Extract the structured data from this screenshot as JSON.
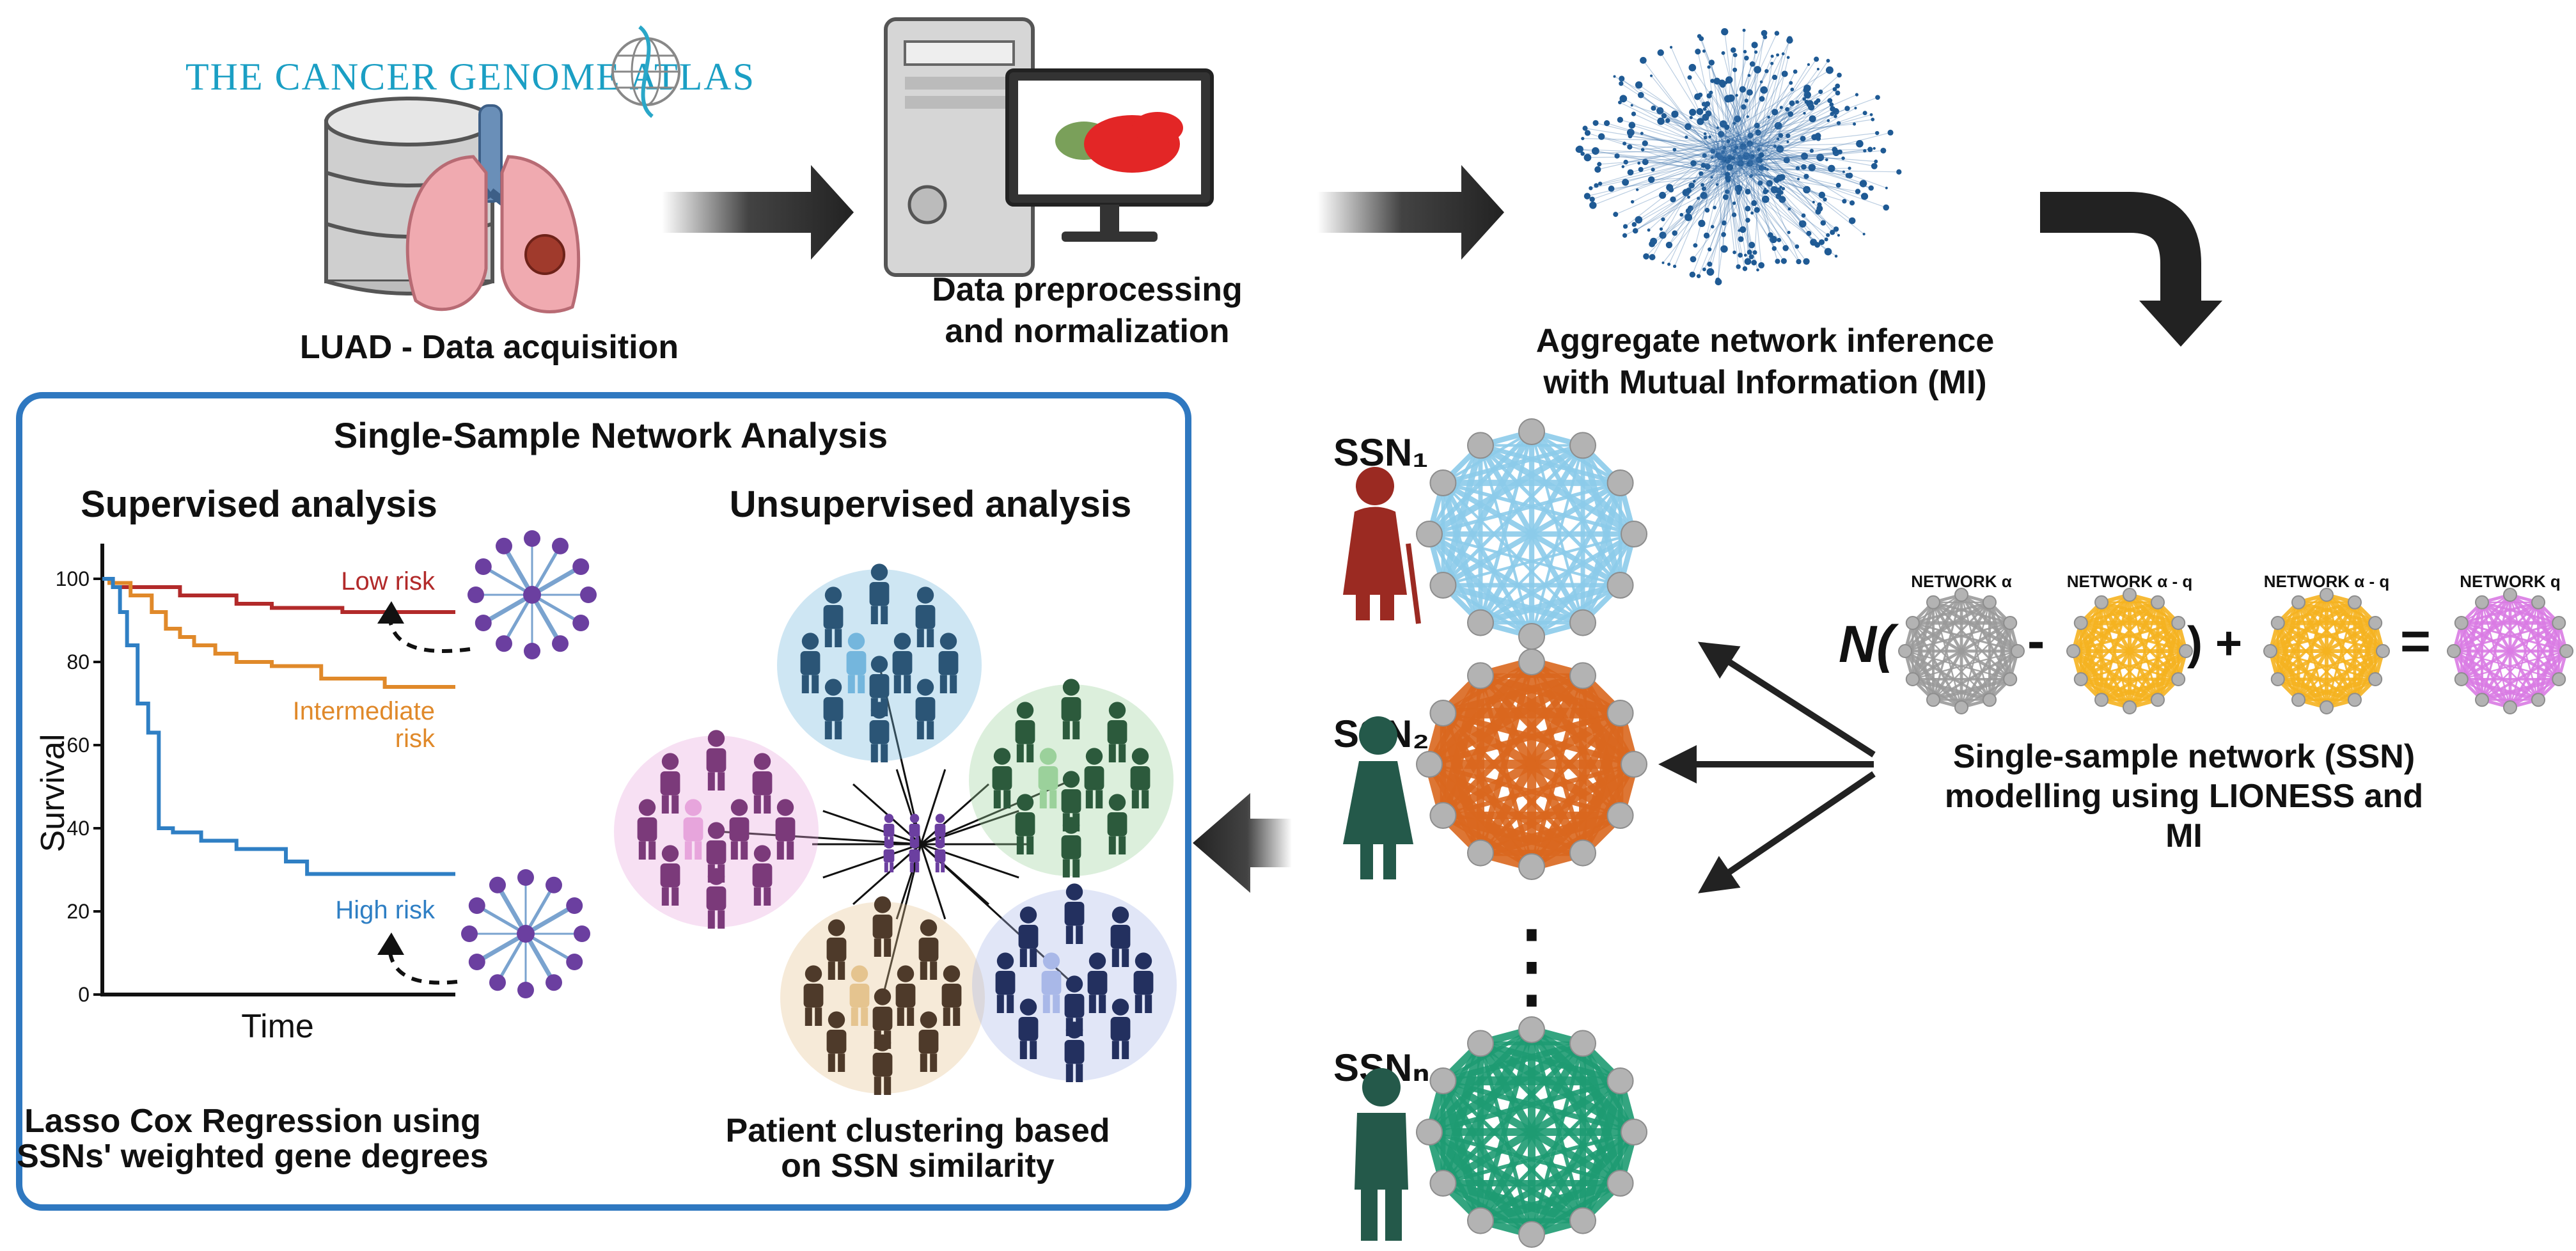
{
  "tcga": {
    "logo_text": "THE CANCER GENOME ATLAS",
    "caption": "LUAD  - Data acquisition"
  },
  "preprocessing": {
    "caption_line1": "Data preprocessing",
    "caption_line2": "and normalization"
  },
  "aggregate": {
    "caption_line1": "Aggregate network inference",
    "caption_line2": "with Mutual Information (MI)"
  },
  "ssn_column": {
    "label_1": "SSN₁",
    "label_2": "SSN₂",
    "label_n": "SSNₙ",
    "ellipsis": "⋮"
  },
  "lioness": {
    "operator_open": "N(",
    "minus": "-",
    "close_plus": ") +",
    "equals": "=",
    "net_alpha": "NETWORK α",
    "net_alpha_q1": "NETWORK α - q",
    "net_alpha_q2": "NETWORK α - q",
    "net_q": "NETWORK q",
    "caption_line1": "Single-sample network (SSN)",
    "caption_line2": "modelling using LIONESS and",
    "caption_line3": "MI"
  },
  "panel": {
    "title": "Single-Sample Network Analysis",
    "supervised_title": "Supervised analysis",
    "unsupervised_title": "Unsupervised analysis",
    "supervised_caption_line1": "Lasso Cox Regression using",
    "supervised_caption_line2": "SSNs' weighted gene degrees",
    "unsupervised_caption_line1": "Patient clustering based",
    "unsupervised_caption_line2": "on SSN similarity"
  },
  "colors": {
    "panel_border": "#2f78c0",
    "low_risk": "#b22a2a",
    "intermediate_risk": "#e0892a",
    "high_risk": "#2f7fc4",
    "ssn1_edges": "#8ccbea",
    "ssn2_edges": "#d9671e",
    "ssnn_edges": "#1e9b72",
    "net_gray": "#9a9a9a",
    "net_yellow": "#f5b320",
    "net_pink": "#d97be3"
  },
  "chart_data": {
    "type": "line",
    "xlabel": "Time",
    "ylabel": "Survival",
    "yticks": [
      0,
      20,
      40,
      60,
      80,
      100
    ],
    "ylim": [
      0,
      100
    ],
    "xlim": [
      0,
      100
    ],
    "series": [
      {
        "name": "Low risk",
        "x": [
          0,
          3,
          14,
          22,
          30,
          38,
          48,
          58,
          68,
          80,
          100
        ],
        "y": [
          100,
          98,
          98,
          96,
          96,
          94,
          93,
          93,
          92,
          92,
          92
        ]
      },
      {
        "name": "Intermediate risk",
        "x": [
          0,
          2,
          8,
          14,
          18,
          22,
          26,
          32,
          38,
          48,
          56,
          62,
          72,
          80,
          100
        ],
        "y": [
          100,
          99,
          96,
          92,
          88,
          86,
          84,
          82,
          80,
          79,
          79,
          76,
          76,
          74,
          74
        ]
      },
      {
        "name": "High risk",
        "x": [
          0,
          3,
          5,
          7,
          10,
          13,
          16,
          20,
          28,
          38,
          52,
          58,
          100
        ],
        "y": [
          100,
          98,
          92,
          84,
          70,
          63,
          40,
          39,
          37,
          35,
          32,
          29,
          29
        ]
      }
    ],
    "labels": {
      "low_risk": "Low risk",
      "intermediate_risk_line1": "Intermediate",
      "intermediate_risk_line2": "risk",
      "high_risk": "High risk"
    }
  }
}
